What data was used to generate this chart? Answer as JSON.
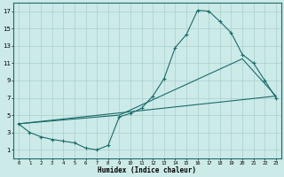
{
  "title": "",
  "xlabel": "Humidex (Indice chaleur)",
  "xlim": [
    -0.5,
    23.5
  ],
  "ylim": [
    0,
    18
  ],
  "yticks": [
    1,
    3,
    5,
    7,
    9,
    11,
    13,
    15,
    17
  ],
  "xticks": [
    0,
    1,
    2,
    3,
    4,
    5,
    6,
    7,
    8,
    9,
    10,
    11,
    12,
    13,
    14,
    15,
    16,
    17,
    18,
    19,
    20,
    21,
    22,
    23
  ],
  "bg_color": "#cceae8",
  "grid_color": "#aacfcc",
  "line_color": "#1a6b6b",
  "line1_x": [
    0,
    1,
    2,
    3,
    4,
    5,
    6,
    7,
    8,
    9,
    10,
    11,
    12,
    13,
    14,
    15,
    16,
    17,
    18,
    19,
    20,
    21,
    22,
    23
  ],
  "line1_y": [
    4.0,
    3.0,
    2.5,
    2.2,
    2.0,
    1.8,
    1.2,
    1.0,
    1.5,
    4.8,
    5.2,
    5.8,
    7.2,
    9.2,
    12.8,
    14.3,
    17.1,
    17.0,
    15.8,
    14.5,
    12.0,
    11.0,
    9.0,
    7.0
  ],
  "line2_x": [
    0,
    23
  ],
  "line2_y": [
    4.0,
    7.2
  ],
  "line3_x": [
    0,
    9,
    20,
    23
  ],
  "line3_y": [
    4.0,
    5.0,
    11.5,
    7.2
  ],
  "marker_style": "+"
}
